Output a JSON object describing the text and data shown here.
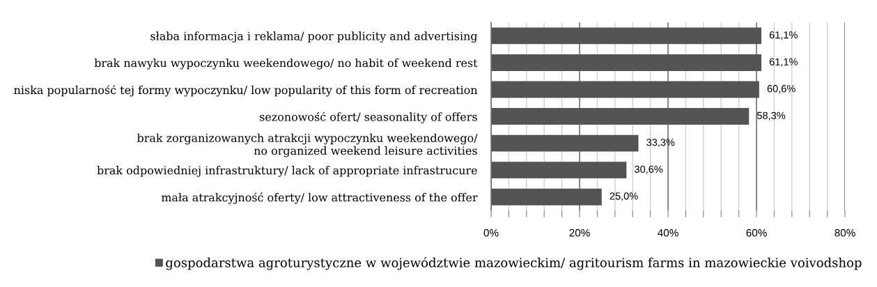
{
  "chart_data": {
    "type": "bar",
    "orientation": "horizontal",
    "categories": [
      "słaba informacja i reklama/ poor publicity and advertising",
      "brak nawyku wypoczynku weekendowego/ no habit of weekend rest",
      "niska popularność tej formy wypoczynku/ low popularity of this form of recreation",
      "sezonowość ofert/ seasonality of offers",
      "brak zorganizowanych atrakcji wypoczynku weekendowego/\nno organized weekend leisure activities",
      "brak odpowiedniej infrastruktury/ lack of appropriate infrastrucure",
      "mała atrakcyjność oferty/ low attractiveness of the offer"
    ],
    "series": [
      {
        "name": "gospodarstwa agroturystyczne w województwie mazowieckim/ agritourism farms in mazowieckie voivodshop",
        "color": "#545454",
        "values": [
          61.1,
          61.1,
          60.6,
          58.3,
          33.3,
          30.6,
          25.0
        ],
        "value_labels": [
          "61,1%",
          "61,1%",
          "60,6%",
          "58,3%",
          "33,3%",
          "30,6%",
          "25,0%"
        ]
      }
    ],
    "xlim": [
      0,
      80
    ],
    "xticks": [
      {
        "value": 0,
        "label": "0%"
      },
      {
        "value": 4,
        "label": null
      },
      {
        "value": 8,
        "label": null
      },
      {
        "value": 12,
        "label": null
      },
      {
        "value": 16,
        "label": null
      },
      {
        "value": 20,
        "label": "20%"
      },
      {
        "value": 24,
        "label": null
      },
      {
        "value": 28,
        "label": null
      },
      {
        "value": 32,
        "label": null
      },
      {
        "value": 36,
        "label": null
      },
      {
        "value": 40,
        "label": "40%"
      },
      {
        "value": 44,
        "label": null
      },
      {
        "value": 48,
        "label": null
      },
      {
        "value": 52,
        "label": null
      },
      {
        "value": 56,
        "label": null
      },
      {
        "value": 60,
        "label": "60%"
      },
      {
        "value": 64,
        "label": null
      },
      {
        "value": 68,
        "label": null
      },
      {
        "value": 72,
        "label": null
      },
      {
        "value": 76,
        "label": null
      },
      {
        "value": 80,
        "label": "80%"
      }
    ],
    "grid": "x",
    "legend": "bottom"
  }
}
